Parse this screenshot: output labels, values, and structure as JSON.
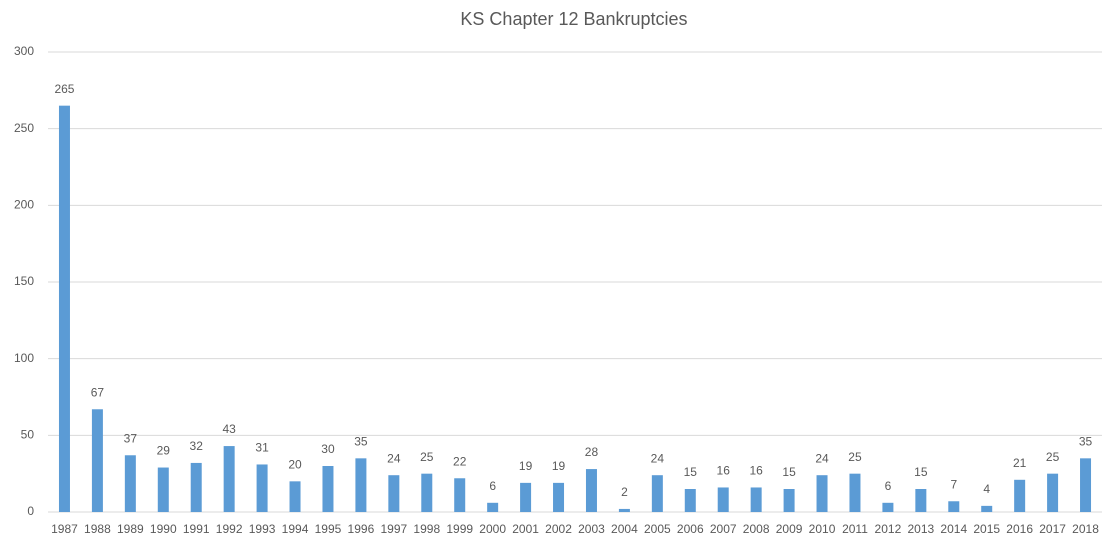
{
  "chart_data": {
    "type": "bar",
    "title": "KS Chapter 12 Bankruptcies",
    "categories": [
      "1987",
      "1988",
      "1989",
      "1990",
      "1991",
      "1992",
      "1993",
      "1994",
      "1995",
      "1996",
      "1997",
      "1998",
      "1999",
      "2000",
      "2001",
      "2002",
      "2003",
      "2004",
      "2005",
      "2006",
      "2007",
      "2008",
      "2009",
      "2010",
      "2011",
      "2012",
      "2013",
      "2014",
      "2015",
      "2016",
      "2017",
      "2018"
    ],
    "values": [
      265,
      67,
      37,
      29,
      32,
      43,
      31,
      20,
      30,
      35,
      24,
      25,
      22,
      6,
      19,
      19,
      28,
      2,
      24,
      15,
      16,
      16,
      15,
      24,
      25,
      6,
      15,
      7,
      4,
      21,
      25,
      35
    ],
    "color": "#5b9bd5",
    "ylim": [
      0,
      300
    ],
    "yticks": [
      0,
      50,
      100,
      150,
      200,
      250,
      300
    ],
    "grid": true
  }
}
